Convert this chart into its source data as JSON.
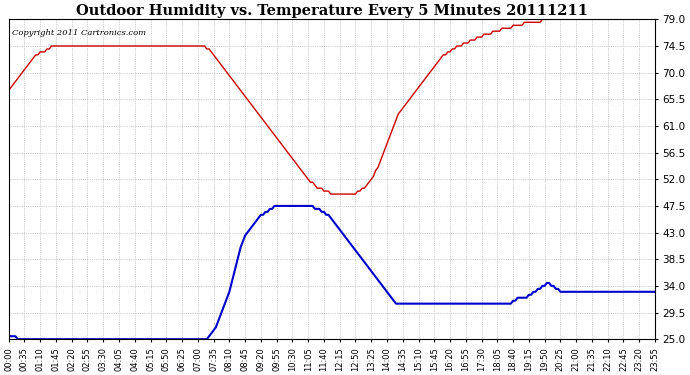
{
  "title": "Outdoor Humidity vs. Temperature Every 5 Minutes 20111211",
  "copyright": "Copyright 2011 Cartronics.com",
  "ylim": [
    25.0,
    79.0
  ],
  "yticks": [
    25.0,
    29.5,
    34.0,
    38.5,
    43.0,
    47.5,
    52.0,
    56.5,
    61.0,
    65.5,
    70.0,
    74.5,
    79.0
  ],
  "line_color_red": "#cc0000",
  "line_color_blue": "#0000cc",
  "background_color": "#ffffff",
  "grid_color": "#888888",
  "temp_data": [
    67.0,
    67.5,
    68.0,
    68.5,
    69.0,
    69.5,
    70.0,
    70.5,
    71.0,
    71.5,
    72.0,
    72.5,
    73.0,
    73.0,
    73.5,
    73.5,
    73.5,
    74.0,
    74.0,
    74.5,
    74.5,
    74.5,
    74.5,
    74.5,
    74.5,
    74.5,
    74.5,
    74.5,
    74.5,
    74.5,
    74.5,
    74.5,
    74.5,
    74.5,
    74.5,
    74.5,
    74.5,
    74.5,
    74.5,
    74.5,
    74.5,
    74.5,
    74.5,
    74.5,
    74.5,
    74.5,
    74.5,
    74.5,
    74.5,
    74.5,
    74.5,
    74.5,
    74.5,
    74.5,
    74.5,
    74.5,
    74.5,
    74.5,
    74.5,
    74.5,
    74.5,
    74.5,
    74.5,
    74.5,
    74.5,
    74.5,
    74.5,
    74.5,
    74.5,
    74.5,
    74.5,
    74.5,
    74.5,
    74.5,
    74.5,
    74.5,
    74.5,
    74.5,
    74.5,
    74.5,
    74.5,
    74.5,
    74.5,
    74.5,
    74.5,
    74.5,
    74.5,
    74.5,
    74.0,
    74.0,
    73.5,
    73.0,
    72.5,
    72.0,
    71.5,
    71.0,
    70.5,
    70.0,
    69.5,
    69.0,
    68.5,
    68.0,
    67.5,
    67.0,
    66.5,
    66.0,
    65.5,
    65.0,
    64.5,
    64.0,
    63.5,
    63.0,
    62.5,
    62.0,
    61.5,
    61.0,
    60.5,
    60.0,
    59.5,
    59.0,
    58.5,
    58.0,
    57.5,
    57.0,
    56.5,
    56.0,
    55.5,
    55.0,
    54.5,
    54.0,
    53.5,
    53.0,
    52.5,
    52.0,
    51.5,
    51.5,
    51.0,
    50.5,
    50.5,
    50.5,
    50.0,
    50.0,
    50.0,
    49.5,
    49.5,
    49.5,
    49.5,
    49.5,
    49.5,
    49.5,
    49.5,
    49.5,
    49.5,
    49.5,
    49.5,
    50.0,
    50.0,
    50.5,
    50.5,
    51.0,
    51.5,
    52.0,
    52.5,
    53.5,
    54.0,
    55.0,
    56.0,
    57.0,
    58.0,
    59.0,
    60.0,
    61.0,
    62.0,
    63.0,
    63.5,
    64.0,
    64.5,
    65.0,
    65.5,
    66.0,
    66.5,
    67.0,
    67.5,
    68.0,
    68.5,
    69.0,
    69.5,
    70.0,
    70.5,
    71.0,
    71.5,
    72.0,
    72.5,
    73.0,
    73.0,
    73.5,
    73.5,
    74.0,
    74.0,
    74.5,
    74.5,
    74.5,
    75.0,
    75.0,
    75.0,
    75.5,
    75.5,
    75.5,
    76.0,
    76.0,
    76.0,
    76.5,
    76.5,
    76.5,
    76.5,
    77.0,
    77.0,
    77.0,
    77.0,
    77.5,
    77.5,
    77.5,
    77.5,
    77.5,
    78.0,
    78.0,
    78.0,
    78.0,
    78.0,
    78.5,
    78.5,
    78.5,
    78.5,
    78.5,
    78.5,
    78.5,
    78.5,
    79.0,
    79.0,
    79.0,
    79.0,
    79.0,
    79.0,
    79.0,
    79.0,
    79.0,
    79.0,
    79.0,
    79.0,
    79.0,
    79.0,
    79.0,
    79.0,
    79.0,
    79.0,
    79.0,
    79.0,
    79.0,
    79.0,
    79.0,
    79.0,
    79.0,
    79.0,
    79.0,
    79.0,
    79.0,
    79.0,
    79.0,
    79.0,
    79.0,
    79.0,
    79.0,
    79.0,
    79.0,
    79.0,
    79.0,
    79.0,
    79.0,
    79.0,
    79.0,
    79.0,
    79.5,
    79.5,
    79.5,
    79.5,
    79.5,
    79.5,
    79.5,
    79.5,
    79.5
  ],
  "humid_data": [
    25.5,
    25.5,
    25.5,
    25.5,
    25.0,
    25.0,
    25.0,
    25.0,
    25.0,
    25.0,
    25.0,
    25.0,
    25.0,
    25.0,
    25.0,
    25.0,
    25.0,
    25.0,
    25.0,
    25.0,
    25.0,
    25.0,
    25.0,
    25.0,
    25.0,
    25.0,
    25.0,
    25.0,
    25.0,
    25.0,
    25.0,
    25.0,
    25.0,
    25.0,
    25.0,
    25.0,
    25.0,
    25.0,
    25.0,
    25.0,
    25.0,
    25.0,
    25.0,
    25.0,
    25.0,
    25.0,
    25.0,
    25.0,
    25.0,
    25.0,
    25.0,
    25.0,
    25.0,
    25.0,
    25.0,
    25.0,
    25.0,
    25.0,
    25.0,
    25.0,
    25.0,
    25.0,
    25.0,
    25.0,
    25.0,
    25.0,
    25.0,
    25.0,
    25.0,
    25.0,
    25.0,
    25.0,
    25.0,
    25.0,
    25.0,
    25.0,
    25.0,
    25.0,
    25.0,
    25.0,
    25.0,
    25.0,
    25.0,
    25.0,
    25.0,
    25.0,
    25.0,
    25.0,
    25.0,
    25.5,
    26.0,
    26.5,
    27.0,
    28.0,
    29.0,
    30.0,
    31.0,
    32.0,
    33.0,
    34.5,
    36.0,
    37.5,
    39.0,
    40.5,
    41.5,
    42.5,
    43.0,
    43.5,
    44.0,
    44.5,
    45.0,
    45.5,
    46.0,
    46.0,
    46.5,
    46.5,
    47.0,
    47.0,
    47.5,
    47.5,
    47.5,
    47.5,
    47.5,
    47.5,
    47.5,
    47.5,
    47.5,
    47.5,
    47.5,
    47.5,
    47.5,
    47.5,
    47.5,
    47.5,
    47.5,
    47.5,
    47.0,
    47.0,
    47.0,
    46.5,
    46.5,
    46.0,
    46.0,
    45.5,
    45.0,
    44.5,
    44.0,
    43.5,
    43.0,
    42.5,
    42.0,
    41.5,
    41.0,
    40.5,
    40.0,
    39.5,
    39.0,
    38.5,
    38.0,
    37.5,
    37.0,
    36.5,
    36.0,
    35.5,
    35.0,
    34.5,
    34.0,
    33.5,
    33.0,
    32.5,
    32.0,
    31.5,
    31.0,
    31.0,
    31.0,
    31.0,
    31.0,
    31.0,
    31.0,
    31.0,
    31.0,
    31.0,
    31.0,
    31.0,
    31.0,
    31.0,
    31.0,
    31.0,
    31.0,
    31.0,
    31.0,
    31.0,
    31.0,
    31.0,
    31.0,
    31.0,
    31.0,
    31.0,
    31.0,
    31.0,
    31.0,
    31.0,
    31.0,
    31.0,
    31.0,
    31.0,
    31.0,
    31.0,
    31.0,
    31.0,
    31.0,
    31.0,
    31.0,
    31.0,
    31.0,
    31.0,
    31.0,
    31.0,
    31.0,
    31.0,
    31.0,
    31.0,
    31.0,
    31.0,
    31.5,
    31.5,
    32.0,
    32.0,
    32.0,
    32.0,
    32.0,
    32.5,
    32.5,
    33.0,
    33.0,
    33.5,
    33.5,
    34.0,
    34.0,
    34.5,
    34.5,
    34.0,
    34.0,
    33.5,
    33.5,
    33.0,
    33.0,
    33.0,
    33.0,
    33.0,
    33.0,
    33.0,
    33.0,
    33.0,
    33.0,
    33.0,
    33.0,
    33.0,
    33.0,
    33.0,
    33.0,
    33.0,
    33.0,
    33.0,
    33.0,
    33.0,
    33.0,
    33.0,
    33.0,
    33.0,
    33.0,
    33.0,
    33.0,
    33.0,
    33.0,
    33.0,
    33.0,
    33.0,
    33.0,
    33.0,
    33.0,
    33.0,
    33.0,
    33.0,
    33.0,
    33.0,
    33.0,
    33.0,
    33.0,
    33.0
  ]
}
